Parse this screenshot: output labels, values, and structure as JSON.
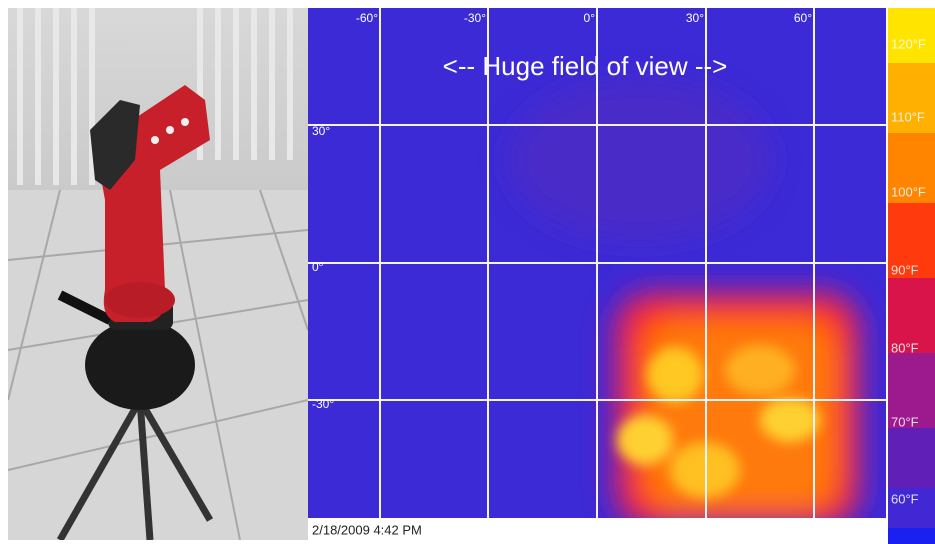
{
  "thermal_view": {
    "caption": "<-- Huge field of view -->",
    "x_ticks": [
      "-60°",
      "-30°",
      "0°",
      "30°",
      "60°"
    ],
    "y_ticks": [
      "30°",
      "0°",
      "-30°"
    ],
    "scale_labels": [
      "120°F",
      "110°F",
      "100°F",
      "90°F",
      "80°F",
      "70°F",
      "60°F"
    ],
    "timestamp": "2/18/2009 4:42 PM"
  }
}
